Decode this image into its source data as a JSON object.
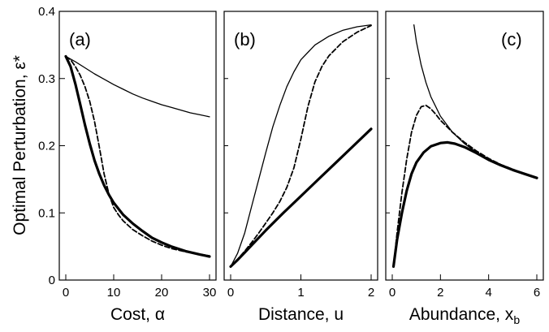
{
  "chart_data": {
    "type": "line",
    "ylabel": "Optimal Perturbation, ε*",
    "ylim": [
      0,
      0.4
    ],
    "yticks": [
      "0",
      "0.1",
      "0.2",
      "0.3",
      "0.4"
    ],
    "line_styles": {
      "thin": "solid thin",
      "dashed": "dashed",
      "thick": "solid thick"
    },
    "panels": [
      {
        "label": "(a)",
        "xlabel": "Cost, α",
        "xlim": [
          0,
          30
        ],
        "xticks": [
          0,
          10,
          20,
          30
        ],
        "xtick_labels": [
          "0",
          "10",
          "20",
          "30"
        ],
        "series": [
          {
            "style": "thin",
            "x": [
              0,
              2,
              4,
              6,
              8,
              10,
              12,
              14,
              16,
              18,
              20,
              22,
              24,
              26,
              28,
              30
            ],
            "y": [
              0.333,
              0.325,
              0.316,
              0.307,
              0.299,
              0.291,
              0.284,
              0.277,
              0.271,
              0.266,
              0.261,
              0.257,
              0.253,
              0.249,
              0.246,
              0.243
            ]
          },
          {
            "style": "dashed",
            "x": [
              0,
              1,
              2,
              3,
              4,
              5,
              6,
              7,
              8,
              9,
              10,
              11,
              12,
              14,
              16,
              18,
              20,
              22,
              25,
              30
            ],
            "y": [
              0.333,
              0.328,
              0.318,
              0.305,
              0.288,
              0.266,
              0.236,
              0.198,
              0.158,
              0.128,
              0.108,
              0.097,
              0.088,
              0.075,
              0.066,
              0.058,
              0.052,
              0.047,
              0.042,
              0.036
            ]
          },
          {
            "style": "thick",
            "x": [
              0,
              1,
              2,
              3,
              4,
              5,
              6,
              7,
              8,
              9,
              10,
              12,
              14,
              16,
              18,
              20,
              22,
              25,
              28,
              30
            ],
            "y": [
              0.333,
              0.318,
              0.292,
              0.262,
              0.231,
              0.203,
              0.178,
              0.158,
              0.141,
              0.127,
              0.115,
              0.097,
              0.084,
              0.073,
              0.063,
              0.056,
              0.05,
              0.043,
              0.038,
              0.035
            ]
          }
        ]
      },
      {
        "label": "(b)",
        "xlabel": "Distance, u",
        "xlim": [
          0,
          2
        ],
        "xticks": [
          0,
          1,
          2
        ],
        "xtick_labels": [
          "0",
          "1",
          "2"
        ],
        "series": [
          {
            "style": "thin",
            "x": [
              0,
              0.1,
              0.2,
              0.3,
              0.4,
              0.5,
              0.6,
              0.7,
              0.8,
              0.9,
              1.0,
              1.2,
              1.4,
              1.6,
              1.8,
              2.0
            ],
            "y": [
              0.02,
              0.04,
              0.07,
              0.11,
              0.15,
              0.19,
              0.228,
              0.26,
              0.288,
              0.31,
              0.328,
              0.35,
              0.363,
              0.372,
              0.377,
              0.38
            ]
          },
          {
            "style": "dashed",
            "x": [
              0,
              0.1,
              0.2,
              0.3,
              0.4,
              0.5,
              0.6,
              0.7,
              0.8,
              0.9,
              1.0,
              1.1,
              1.2,
              1.3,
              1.4,
              1.6,
              1.8,
              2.0
            ],
            "y": [
              0.02,
              0.031,
              0.043,
              0.056,
              0.07,
              0.085,
              0.1,
              0.117,
              0.138,
              0.167,
              0.21,
              0.258,
              0.295,
              0.318,
              0.334,
              0.355,
              0.369,
              0.379
            ]
          },
          {
            "style": "thick",
            "x": [
              0,
              0.1,
              0.2,
              0.3,
              0.5,
              0.75,
              1.0,
              1.25,
              1.5,
              1.75,
              2.0
            ],
            "y": [
              0.02,
              0.03,
              0.041,
              0.052,
              0.074,
              0.1,
              0.125,
              0.15,
              0.175,
              0.2,
              0.225
            ]
          }
        ]
      },
      {
        "label": "(c)",
        "xlabel": "Abundance, x",
        "xlabel_sub": "b",
        "xlim": [
          0,
          6
        ],
        "xticks": [
          0,
          2,
          4,
          6
        ],
        "xtick_labels": [
          "0",
          "2",
          "4",
          "6"
        ],
        "series": [
          {
            "style": "thin",
            "x": [
              0.9,
              1.0,
              1.2,
              1.4,
              1.6,
              2.0,
              2.5,
              3.0,
              3.5,
              4.0,
              4.5,
              5.0,
              5.5,
              6.0
            ],
            "y": [
              0.38,
              0.355,
              0.32,
              0.294,
              0.273,
              0.244,
              0.22,
              0.203,
              0.19,
              0.18,
              0.171,
              0.164,
              0.158,
              0.152
            ]
          },
          {
            "style": "dashed",
            "x": [
              0.05,
              0.2,
              0.4,
              0.6,
              0.8,
              1.0,
              1.2,
              1.4,
              1.6,
              1.8,
              2.0,
              2.5,
              3.0,
              3.5,
              4.0,
              4.5,
              5.0,
              5.5,
              6.0
            ],
            "y": [
              0.02,
              0.07,
              0.13,
              0.18,
              0.22,
              0.245,
              0.258,
              0.26,
              0.255,
              0.247,
              0.238,
              0.22,
              0.205,
              0.192,
              0.181,
              0.172,
              0.165,
              0.158,
              0.152
            ]
          },
          {
            "style": "thick",
            "x": [
              0.05,
              0.2,
              0.4,
              0.6,
              0.8,
              1.0,
              1.3,
              1.6,
              2.0,
              2.3,
              2.6,
              3.0,
              3.5,
              4.0,
              4.5,
              5.0,
              5.5,
              6.0
            ],
            "y": [
              0.02,
              0.06,
              0.1,
              0.133,
              0.158,
              0.175,
              0.19,
              0.199,
              0.204,
              0.205,
              0.203,
              0.198,
              0.189,
              0.179,
              0.171,
              0.164,
              0.158,
              0.152
            ]
          }
        ]
      }
    ]
  }
}
